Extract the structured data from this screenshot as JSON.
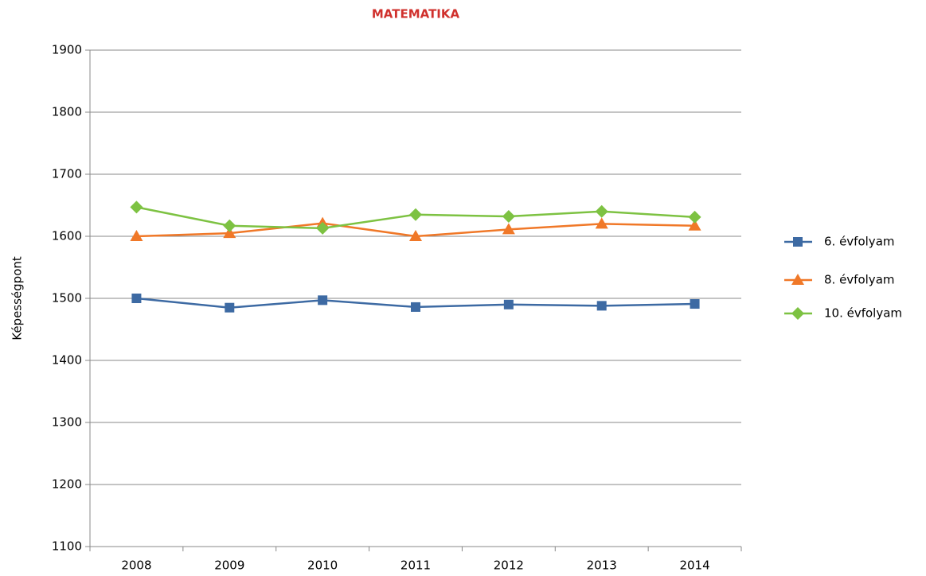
{
  "chart_data": {
    "type": "line",
    "title": "MATEMATIKA",
    "y_label": "Képességpont",
    "categories": [
      "2008",
      "2009",
      "2010",
      "2011",
      "2012",
      "2013",
      "2014"
    ],
    "series": [
      {
        "name": "6. évfolyam",
        "color": "#3d6aa3",
        "marker": "square",
        "values": [
          1500,
          1485,
          1497,
          1486,
          1490,
          1488,
          1491
        ]
      },
      {
        "name": "8. évfolyam",
        "color": "#f07828",
        "marker": "triangle",
        "values": [
          1600,
          1605,
          1621,
          1600,
          1611,
          1620,
          1617
        ]
      },
      {
        "name": "10. évfolyam",
        "color": "#7dc242",
        "marker": "diamond",
        "values": [
          1647,
          1617,
          1613,
          1635,
          1632,
          1640,
          1631
        ]
      }
    ],
    "ylim": [
      1100,
      1900
    ],
    "yticks": [
      1100,
      1200,
      1300,
      1400,
      1500,
      1600,
      1700,
      1800,
      1900
    ],
    "grid": true,
    "legend": "right"
  }
}
